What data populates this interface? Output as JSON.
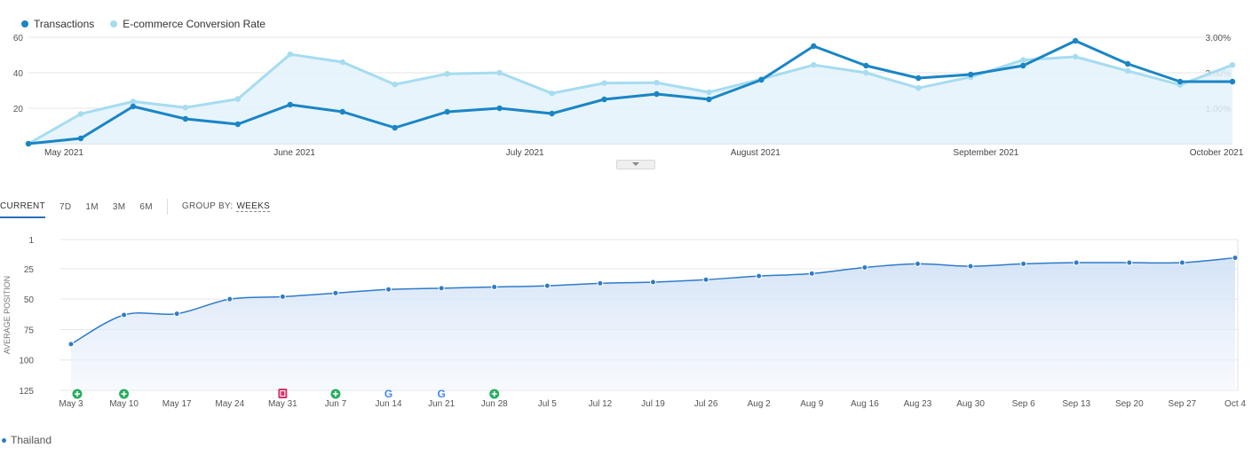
{
  "colors": {
    "transactions": "#1a85c6",
    "conversion": "#a6dcf0",
    "position_line": "#2f7bc9",
    "grid": "#e6e6e6",
    "marker_green": "#27ae60",
    "marker_pink": "#d6336c"
  },
  "top_legend": {
    "transactions": "Transactions",
    "conversion": "E-commerce Conversion Rate"
  },
  "tabs": {
    "current": "CURRENT",
    "d7": "7D",
    "m1": "1M",
    "m3": "3M",
    "m6": "6M",
    "group_by_label": "GROUP BY:",
    "group_by_value": "WEEKS"
  },
  "series_legend": "Thailand",
  "chart_data": [
    {
      "type": "line",
      "x_labels": [
        "May 2021",
        "June 2021",
        "July 2021",
        "August 2021",
        "September 2021",
        "October 2021"
      ],
      "y_ticks_left": [
        "60",
        "40",
        "20"
      ],
      "y_ticks_right": [
        "3.00%",
        "2.00%",
        "1.00%"
      ],
      "ylim_left": [
        0,
        60
      ],
      "ylim_right": [
        "0.00%",
        "3.00%"
      ],
      "grid": true,
      "legend": "top-left",
      "series": [
        {
          "name": "Transactions",
          "axis": "left",
          "values": [
            0,
            3,
            21,
            14,
            11,
            22,
            18,
            9,
            18,
            20,
            17,
            25,
            28,
            25,
            36,
            55,
            44,
            37,
            39,
            44,
            58,
            45,
            35,
            35
          ]
        },
        {
          "name": "E-commerce Conversion Rate",
          "axis": "right",
          "values": [
            0.0,
            0.84,
            1.19,
            1.02,
            1.26,
            2.52,
            2.3,
            1.67,
            1.97,
            2.0,
            1.42,
            1.71,
            1.72,
            1.45,
            1.82,
            2.22,
            2.0,
            1.57,
            1.88,
            2.36,
            2.45,
            2.05,
            1.66,
            2.22
          ]
        }
      ]
    },
    {
      "type": "area",
      "ylabel": "AVERAGE POSITION",
      "y_ticks": [
        "1",
        "25",
        "50",
        "75",
        "100",
        "125"
      ],
      "ylim": [
        1,
        125
      ],
      "y_inverted": true,
      "grid": true,
      "categories": [
        "May 3",
        "May 10",
        "May 17",
        "May 24",
        "May 31",
        "Jun 7",
        "Jun 14",
        "Jun 21",
        "Jun 28",
        "Jul 5",
        "Jul 12",
        "Jul 19",
        "Jul 26",
        "Aug 2",
        "Aug 9",
        "Aug 16",
        "Aug 23",
        "Aug 30",
        "Sep 6",
        "Sep 13",
        "Sep 20",
        "Sep 27",
        "Oct 4"
      ],
      "series": [
        {
          "name": "Thailand",
          "values": [
            87,
            63,
            62,
            50,
            48,
            45,
            42,
            41,
            40,
            39,
            37,
            36,
            34,
            31,
            29,
            24,
            21,
            23,
            21,
            20,
            20,
            20,
            16
          ]
        }
      ],
      "event_markers": [
        {
          "category": "May 3",
          "icon": "green-plus-icon"
        },
        {
          "category": "May 10",
          "icon": "green-plus-icon"
        },
        {
          "category": "May 31",
          "icon": "pink-note-icon"
        },
        {
          "category": "Jun 7",
          "icon": "green-plus-icon"
        },
        {
          "category": "Jun 14",
          "icon": "google-icon"
        },
        {
          "category": "Jun 21",
          "icon": "google-icon"
        },
        {
          "category": "Jun 28",
          "icon": "green-plus-icon"
        }
      ]
    }
  ]
}
